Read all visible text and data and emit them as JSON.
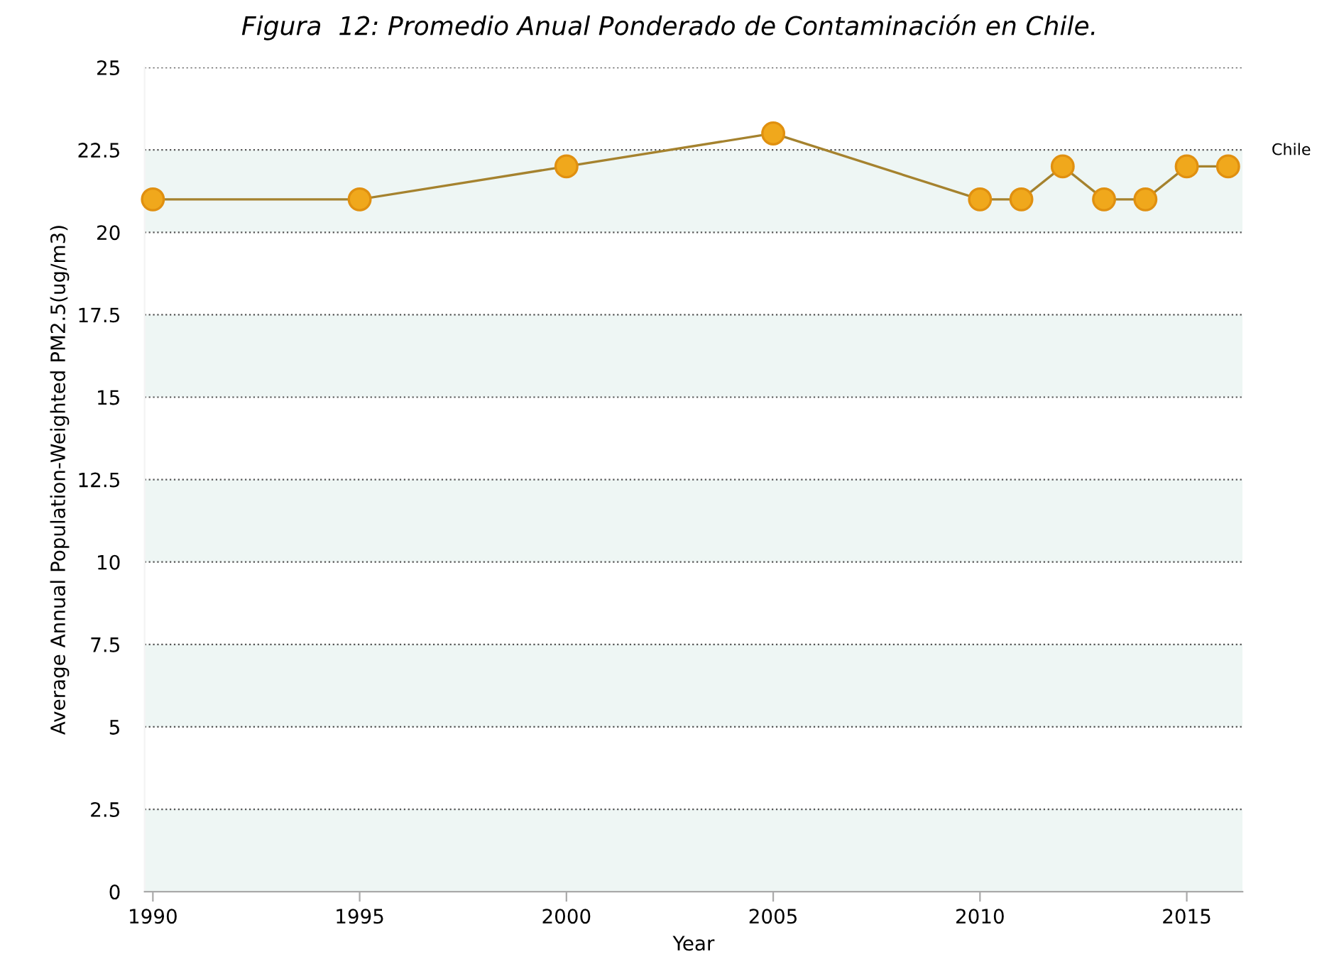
{
  "chart_data": {
    "type": "line",
    "title": "Figura  12: Promedio Anual Ponderado de Contaminación en Chile.",
    "xlabel": "Year",
    "ylabel": "Average Annual Population-Weighted PM2.5(ug/m3)",
    "x": [
      1990,
      1995,
      2000,
      2005,
      2010,
      2011,
      2012,
      2013,
      2014,
      2015,
      2016
    ],
    "series": [
      {
        "name": "Chile",
        "color": "#f0a81c",
        "values": [
          21,
          21,
          22,
          23,
          21,
          21,
          22,
          21,
          21,
          22,
          22
        ]
      }
    ],
    "xlim": [
      1989.8,
      2016.35
    ],
    "xticks": [
      1990,
      1995,
      2000,
      2005,
      2010,
      2015
    ],
    "ylim": [
      0,
      25
    ],
    "yticks": [
      0,
      2.5,
      5,
      7.5,
      10,
      12.5,
      15,
      17.5,
      20,
      22.5,
      25
    ],
    "grid": "y",
    "marker": "circle",
    "line_style": "solid",
    "legend": false,
    "bands": [
      {
        "axis": "y",
        "from": 0,
        "to": 2.5,
        "color": "#eef6f4"
      },
      {
        "axis": "y",
        "from": 5,
        "to": 7.5,
        "color": "#eef6f4"
      },
      {
        "axis": "y",
        "from": 10,
        "to": 12.5,
        "color": "#eef6f4"
      },
      {
        "axis": "y",
        "from": 15,
        "to": 17.5,
        "color": "#eef6f4"
      },
      {
        "axis": "y",
        "from": 20,
        "to": 22.5,
        "color": "#eef6f4"
      }
    ]
  }
}
